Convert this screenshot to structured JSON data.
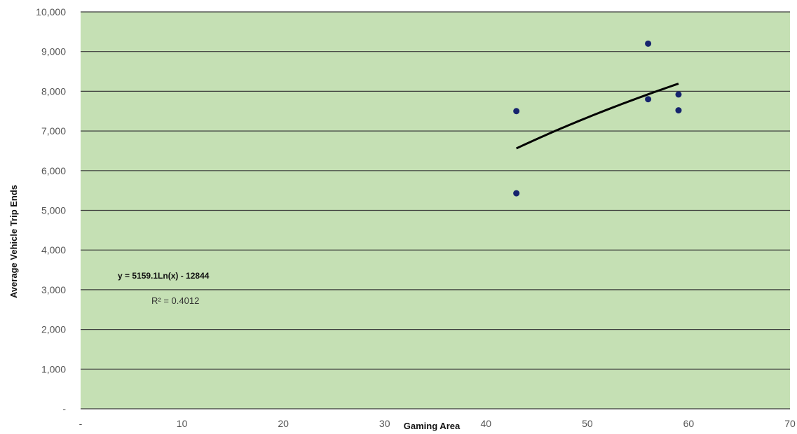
{
  "chart_data": {
    "type": "scatter",
    "title": "",
    "xlabel": "Gaming Area",
    "ylabel": "Average Vehicle Trip Ends",
    "xlim": [
      0,
      70
    ],
    "ylim": [
      0,
      10000
    ],
    "x_ticks": [
      0,
      10,
      20,
      30,
      40,
      50,
      60,
      70
    ],
    "x_tick_labels": [
      "-",
      "10",
      "20",
      "30",
      "40",
      "50",
      "60",
      "70"
    ],
    "y_ticks": [
      0,
      1000,
      2000,
      3000,
      4000,
      5000,
      6000,
      7000,
      8000,
      9000,
      10000
    ],
    "y_tick_labels": [
      "-",
      "1,000",
      "2,000",
      "3,000",
      "4,000",
      "5,000",
      "6,000",
      "7,000",
      "8,000",
      "9,000",
      "10,000"
    ],
    "grid": "horizontal",
    "points": [
      {
        "x": 43,
        "y": 7500
      },
      {
        "x": 43,
        "y": 5430
      },
      {
        "x": 56,
        "y": 9200
      },
      {
        "x": 56,
        "y": 7800
      },
      {
        "x": 59,
        "y": 7920
      },
      {
        "x": 59,
        "y": 7520
      }
    ],
    "trendline": {
      "type": "logarithmic",
      "a": 5159.1,
      "b": -12844,
      "x_range": [
        43,
        59
      ],
      "equation_label": "y = 5159.1Ln(x) - 12844",
      "r2_label": "R² = 0.4012"
    },
    "colors": {
      "plot_background": "#c5e0b4",
      "gridline": "#3a3a3a",
      "point": "#16246e",
      "trendline": "#000000"
    }
  }
}
